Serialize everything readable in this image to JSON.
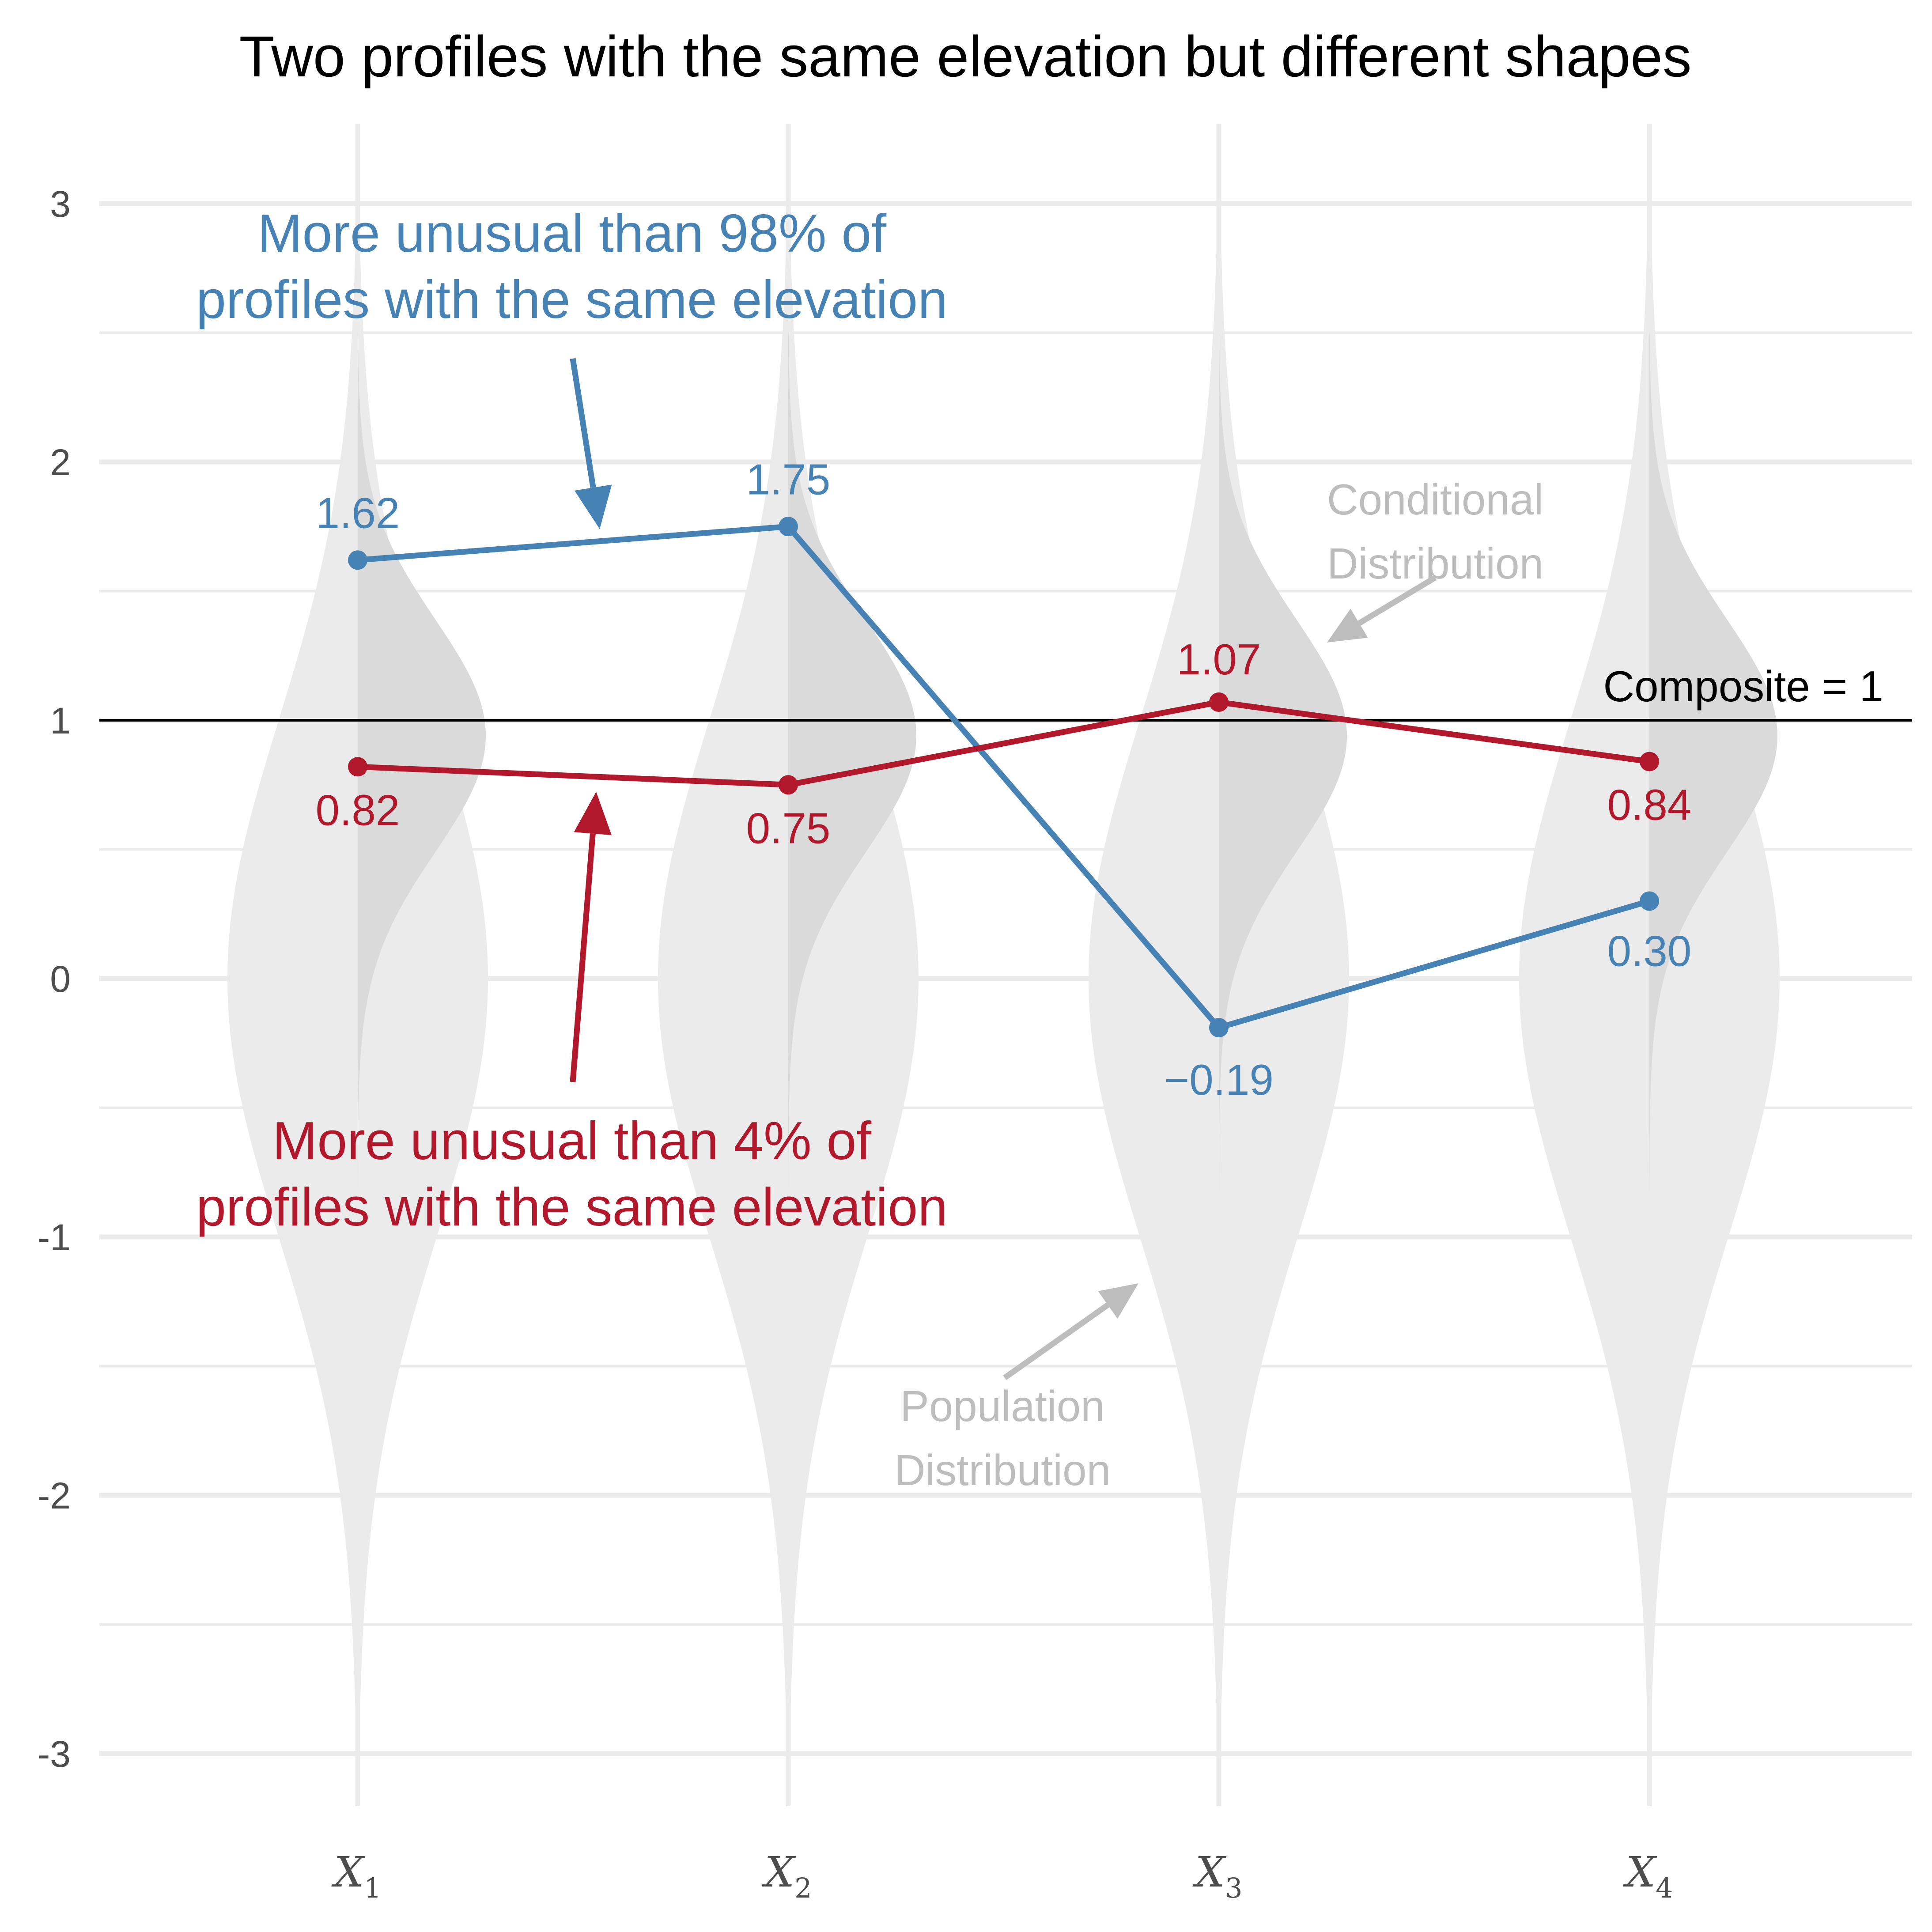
{
  "chart_data": {
    "type": "line",
    "title": "Two profiles with the same elevation but different shapes",
    "xlabel": "",
    "ylabel": "",
    "categories": [
      {
        "base": "X",
        "sub": "1"
      },
      {
        "base": "X",
        "sub": "2"
      },
      {
        "base": "X",
        "sub": "3"
      },
      {
        "base": "X",
        "sub": "4"
      }
    ],
    "yticks": [
      "3",
      "2",
      "1",
      "0",
      "-1",
      "-2",
      "-3"
    ],
    "ylim": [
      -3.3,
      3.3
    ],
    "grid": true,
    "series": [
      {
        "values": [
          1.62,
          1.75,
          -0.19,
          0.3
        ],
        "labels": [
          "1.62",
          "1.75",
          "−0.19",
          "0.30"
        ],
        "color": "#4682b4"
      },
      {
        "values": [
          0.82,
          0.75,
          1.07,
          0.84
        ],
        "labels": [
          "0.82",
          "0.75",
          "1.07",
          "0.84"
        ],
        "color": "#b2182b"
      }
    ],
    "reference_line": {
      "value": 1,
      "label": "Composite = 1",
      "color": "#000000"
    },
    "annotations": {
      "blue": {
        "lines": [
          "More unusual than 98% of",
          "profiles with the same elevation"
        ]
      },
      "red": {
        "lines": [
          "More unusual than 4% of",
          "profiles with the same elevation"
        ]
      },
      "conditional": {
        "lines": [
          "Conditional",
          "Distribution"
        ]
      },
      "population": {
        "lines": [
          "Population",
          "Distribution"
        ]
      }
    },
    "distributions": {
      "population": {
        "mean": 0,
        "sd": 1,
        "range": [
          -3,
          3
        ],
        "color": "#ebebeb"
      },
      "conditional": {
        "means": [
          0.94,
          0.94,
          0.94,
          0.94
        ],
        "sd": 0.45,
        "range": [
          -1.2,
          2.5
        ],
        "color": "#dadada"
      }
    }
  }
}
